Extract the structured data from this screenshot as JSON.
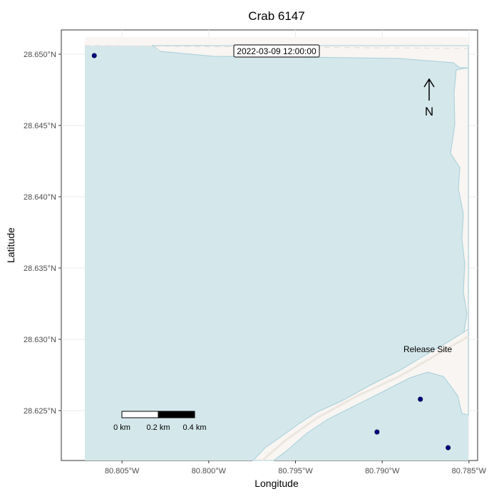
{
  "title": "Crab 6147",
  "xlabel": "Longitude",
  "ylabel": "Latitude",
  "x_ticks": [
    {
      "value": -80.805,
      "label": "80.805°W"
    },
    {
      "value": -80.8,
      "label": "80.800°W"
    },
    {
      "value": -80.795,
      "label": "80.795°W"
    },
    {
      "value": -80.79,
      "label": "80.790°W"
    },
    {
      "value": -80.785,
      "label": "80.785°W"
    }
  ],
  "y_ticks": [
    {
      "value": 28.65,
      "label": "28.650°N"
    },
    {
      "value": 28.645,
      "label": "28.645°N"
    },
    {
      "value": 28.64,
      "label": "28.640°N"
    },
    {
      "value": 28.635,
      "label": "28.635°N"
    },
    {
      "value": 28.63,
      "label": "28.630°N"
    },
    {
      "value": 28.625,
      "label": "28.625°N"
    }
  ],
  "xlim": [
    -80.8085,
    -80.7845
  ],
  "ylim": [
    28.6215,
    28.6517
  ],
  "timestamp_label": "2022-03-09 12:00:00",
  "north_arrow_label": "N",
  "release_site_label": "Release Site",
  "scale_bar": {
    "labels": [
      "0 km",
      "0.2 km",
      "0.4 km"
    ]
  },
  "colors": {
    "water": "#d4e7eb",
    "land": "#f8f5f2",
    "shoreline": "#a6cfd9",
    "points": "#000080",
    "grid": "#ebebeb"
  },
  "chart_data": {
    "type": "scatter",
    "title": "Crab 6147",
    "xlabel": "Longitude",
    "ylabel": "Latitude",
    "xlim": [
      -80.8085,
      -80.7845
    ],
    "ylim": [
      28.6215,
      28.6517
    ],
    "grid": true,
    "series": [
      {
        "points": [
          {
            "lon": -80.8066,
            "lat": 28.6499
          },
          {
            "lon": -80.7878,
            "lat": 28.6258
          },
          {
            "lon": -80.7903,
            "lat": 28.6235
          },
          {
            "lon": -80.7862,
            "lat": 28.6224
          }
        ]
      }
    ]
  }
}
